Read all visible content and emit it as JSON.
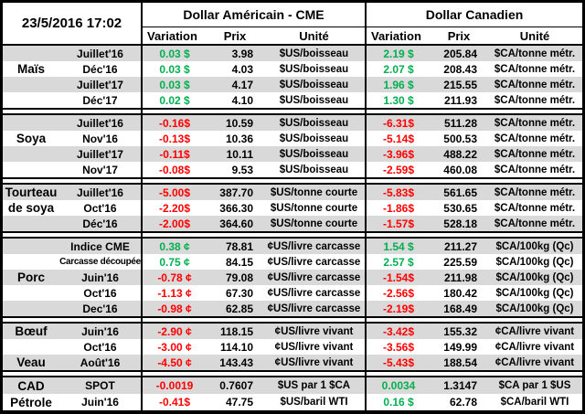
{
  "header": {
    "datetime": "23/5/2016 17:02",
    "us_title": "Dollar Américain - CME",
    "ca_title": "Dollar Canadien",
    "columns": {
      "variation": "Variation",
      "prix": "Prix",
      "unite": "Unité"
    }
  },
  "colors": {
    "positive": "#00B050",
    "negative": "#FF0000",
    "stripe": "#D9D9D9",
    "border": "#000000"
  },
  "groups": [
    {
      "commodity": "Maïs",
      "rows": [
        {
          "name": "",
          "month": "Juillet'16",
          "shaded": true,
          "us": {
            "variation": "0.03 $",
            "trend": "up",
            "prix": "3.98",
            "unite": "$US/boisseau"
          },
          "ca": {
            "variation": "2.19 $",
            "trend": "up",
            "prix": "205.84",
            "unite": "$CA/tonne métr."
          }
        },
        {
          "name": "Maïs",
          "month": "Déc'16",
          "shaded": false,
          "us": {
            "variation": "0.03 $",
            "trend": "up",
            "prix": "4.03",
            "unite": "$US/boisseau"
          },
          "ca": {
            "variation": "2.07 $",
            "trend": "up",
            "prix": "208.43",
            "unite": "$CA/tonne métr."
          }
        },
        {
          "name": "",
          "month": "Juillet'17",
          "shaded": true,
          "us": {
            "variation": "0.03 $",
            "trend": "up",
            "prix": "4.17",
            "unite": "$US/boisseau"
          },
          "ca": {
            "variation": "1.96 $",
            "trend": "up",
            "prix": "215.55",
            "unite": "$CA/tonne métr."
          }
        },
        {
          "name": "",
          "month": "Déc'17",
          "shaded": false,
          "us": {
            "variation": "0.02 $",
            "trend": "up",
            "prix": "4.10",
            "unite": "$US/boisseau"
          },
          "ca": {
            "variation": "1.30 $",
            "trend": "up",
            "prix": "211.93",
            "unite": "$CA/tonne métr."
          }
        }
      ]
    },
    {
      "commodity": "Soya",
      "rows": [
        {
          "name": "",
          "month": "Juillet'16",
          "shaded": true,
          "us": {
            "variation": "-0.16$",
            "trend": "down",
            "prix": "10.59",
            "unite": "$US/boisseau"
          },
          "ca": {
            "variation": "-6.31$",
            "trend": "down",
            "prix": "511.28",
            "unite": "$CA/tonne métr."
          }
        },
        {
          "name": "Soya",
          "month": "Nov'16",
          "shaded": false,
          "us": {
            "variation": "-0.13$",
            "trend": "down",
            "prix": "10.36",
            "unite": "$US/boisseau"
          },
          "ca": {
            "variation": "-5.14$",
            "trend": "down",
            "prix": "500.53",
            "unite": "$CA/tonne métr."
          }
        },
        {
          "name": "",
          "month": "Juillet'17",
          "shaded": true,
          "us": {
            "variation": "-0.11$",
            "trend": "down",
            "prix": "10.11",
            "unite": "$US/boisseau"
          },
          "ca": {
            "variation": "-3.96$",
            "trend": "down",
            "prix": "488.22",
            "unite": "$CA/tonne métr."
          }
        },
        {
          "name": "",
          "month": "Nov'17",
          "shaded": false,
          "us": {
            "variation": "-0.08$",
            "trend": "down",
            "prix": "9.53",
            "unite": "$US/boisseau"
          },
          "ca": {
            "variation": "-2.59$",
            "trend": "down",
            "prix": "460.08",
            "unite": "$CA/tonne métr."
          }
        }
      ]
    },
    {
      "commodity": "Tourteau de soya",
      "rows": [
        {
          "name": "Tourteau",
          "month": "Juillet'16",
          "shaded": true,
          "us": {
            "variation": "-5.00$",
            "trend": "down",
            "prix": "387.70",
            "unite": "$US/tonne courte"
          },
          "ca": {
            "variation": "-5.83$",
            "trend": "down",
            "prix": "561.65",
            "unite": "$CA/tonne métr."
          }
        },
        {
          "name": "de soya",
          "month": "Oct'16",
          "shaded": false,
          "us": {
            "variation": "-2.20$",
            "trend": "down",
            "prix": "366.30",
            "unite": "$US/tonne courte"
          },
          "ca": {
            "variation": "-1.86$",
            "trend": "down",
            "prix": "530.65",
            "unite": "$CA/tonne métr."
          }
        },
        {
          "name": "",
          "month": "Déc'16",
          "shaded": true,
          "us": {
            "variation": "-2.00$",
            "trend": "down",
            "prix": "364.60",
            "unite": "$US/tonne courte"
          },
          "ca": {
            "variation": "-1.57$",
            "trend": "down",
            "prix": "528.18",
            "unite": "$CA/tonne métr."
          }
        }
      ]
    },
    {
      "commodity": "Porc",
      "rows": [
        {
          "name": "",
          "month": "Indice CME",
          "shaded": true,
          "us": {
            "variation": "0.38 ¢",
            "trend": "up",
            "prix": "78.81",
            "unite": "¢US/livre carcasse"
          },
          "ca": {
            "variation": "1.54 $",
            "trend": "up",
            "prix": "211.27",
            "unite": "$CA/100kg (Qc)"
          }
        },
        {
          "name": "",
          "month": "Carcasse découpée",
          "small": true,
          "shaded": false,
          "us": {
            "variation": "0.75 ¢",
            "trend": "up",
            "prix": "84.15",
            "unite": "¢US/livre carcasse"
          },
          "ca": {
            "variation": "2.57 $",
            "trend": "up",
            "prix": "225.59",
            "unite": "$CA/100kg (Qc)"
          }
        },
        {
          "name": "Porc",
          "month": "Juin'16",
          "shaded": true,
          "us": {
            "variation": "-0.78 ¢",
            "trend": "down",
            "prix": "79.08",
            "unite": "¢US/livre carcasse"
          },
          "ca": {
            "variation": "-1.54$",
            "trend": "down",
            "prix": "211.98",
            "unite": "$CA/100kg (Qc)"
          }
        },
        {
          "name": "",
          "month": "Oct'16",
          "shaded": false,
          "us": {
            "variation": "-1.13 ¢",
            "trend": "down",
            "prix": "67.30",
            "unite": "¢US/livre carcasse"
          },
          "ca": {
            "variation": "-2.56$",
            "trend": "down",
            "prix": "180.42",
            "unite": "$CA/100kg (Qc)"
          }
        },
        {
          "name": "",
          "month": "Dec'16",
          "shaded": true,
          "us": {
            "variation": "-0.98 ¢",
            "trend": "down",
            "prix": "62.85",
            "unite": "¢US/livre carcasse"
          },
          "ca": {
            "variation": "-2.19$",
            "trend": "down",
            "prix": "168.49",
            "unite": "$CA/100kg (Qc)"
          }
        }
      ]
    },
    {
      "commodity": "Bœuf / Veau",
      "rows": [
        {
          "name": "Bœuf",
          "month": "Juin'16",
          "shaded": true,
          "us": {
            "variation": "-2.90 ¢",
            "trend": "down",
            "prix": "118.15",
            "unite": "¢US/livre vivant"
          },
          "ca": {
            "variation": "-3.42$",
            "trend": "down",
            "prix": "155.32",
            "unite": "¢CA/livre vivant"
          }
        },
        {
          "name": "",
          "month": "Oct'16",
          "shaded": false,
          "us": {
            "variation": "-3.00 ¢",
            "trend": "down",
            "prix": "114.10",
            "unite": "¢US/livre vivant"
          },
          "ca": {
            "variation": "-3.56$",
            "trend": "down",
            "prix": "149.99",
            "unite": "¢CA/livre vivant"
          }
        },
        {
          "name": "Veau",
          "month": "Août'16",
          "shaded": true,
          "us": {
            "variation": "-4.50 ¢",
            "trend": "down",
            "prix": "143.43",
            "unite": "¢US/livre vivant"
          },
          "ca": {
            "variation": "-5.43$",
            "trend": "down",
            "prix": "188.54",
            "unite": "¢CA/livre vivant"
          }
        }
      ]
    },
    {
      "commodity": "CAD / Pétrole",
      "rows": [
        {
          "name": "CAD",
          "month": "SPOT",
          "shaded": true,
          "us": {
            "variation": "-0.0019",
            "trend": "down",
            "prix": "0.7607",
            "unite": "$US par 1 $CA"
          },
          "ca": {
            "variation": "0.0034",
            "trend": "up",
            "prix": "1.3147",
            "unite": "$CA par 1 $US"
          }
        },
        {
          "name": "Pétrole",
          "month": "Juin'16",
          "shaded": false,
          "us": {
            "variation": "-0.41$",
            "trend": "down",
            "prix": "47.75",
            "unite": "$US/baril WTI"
          },
          "ca": {
            "variation": "0.16 $",
            "trend": "up",
            "prix": "62.78",
            "unite": "$CA/baril WTI"
          }
        }
      ]
    }
  ]
}
